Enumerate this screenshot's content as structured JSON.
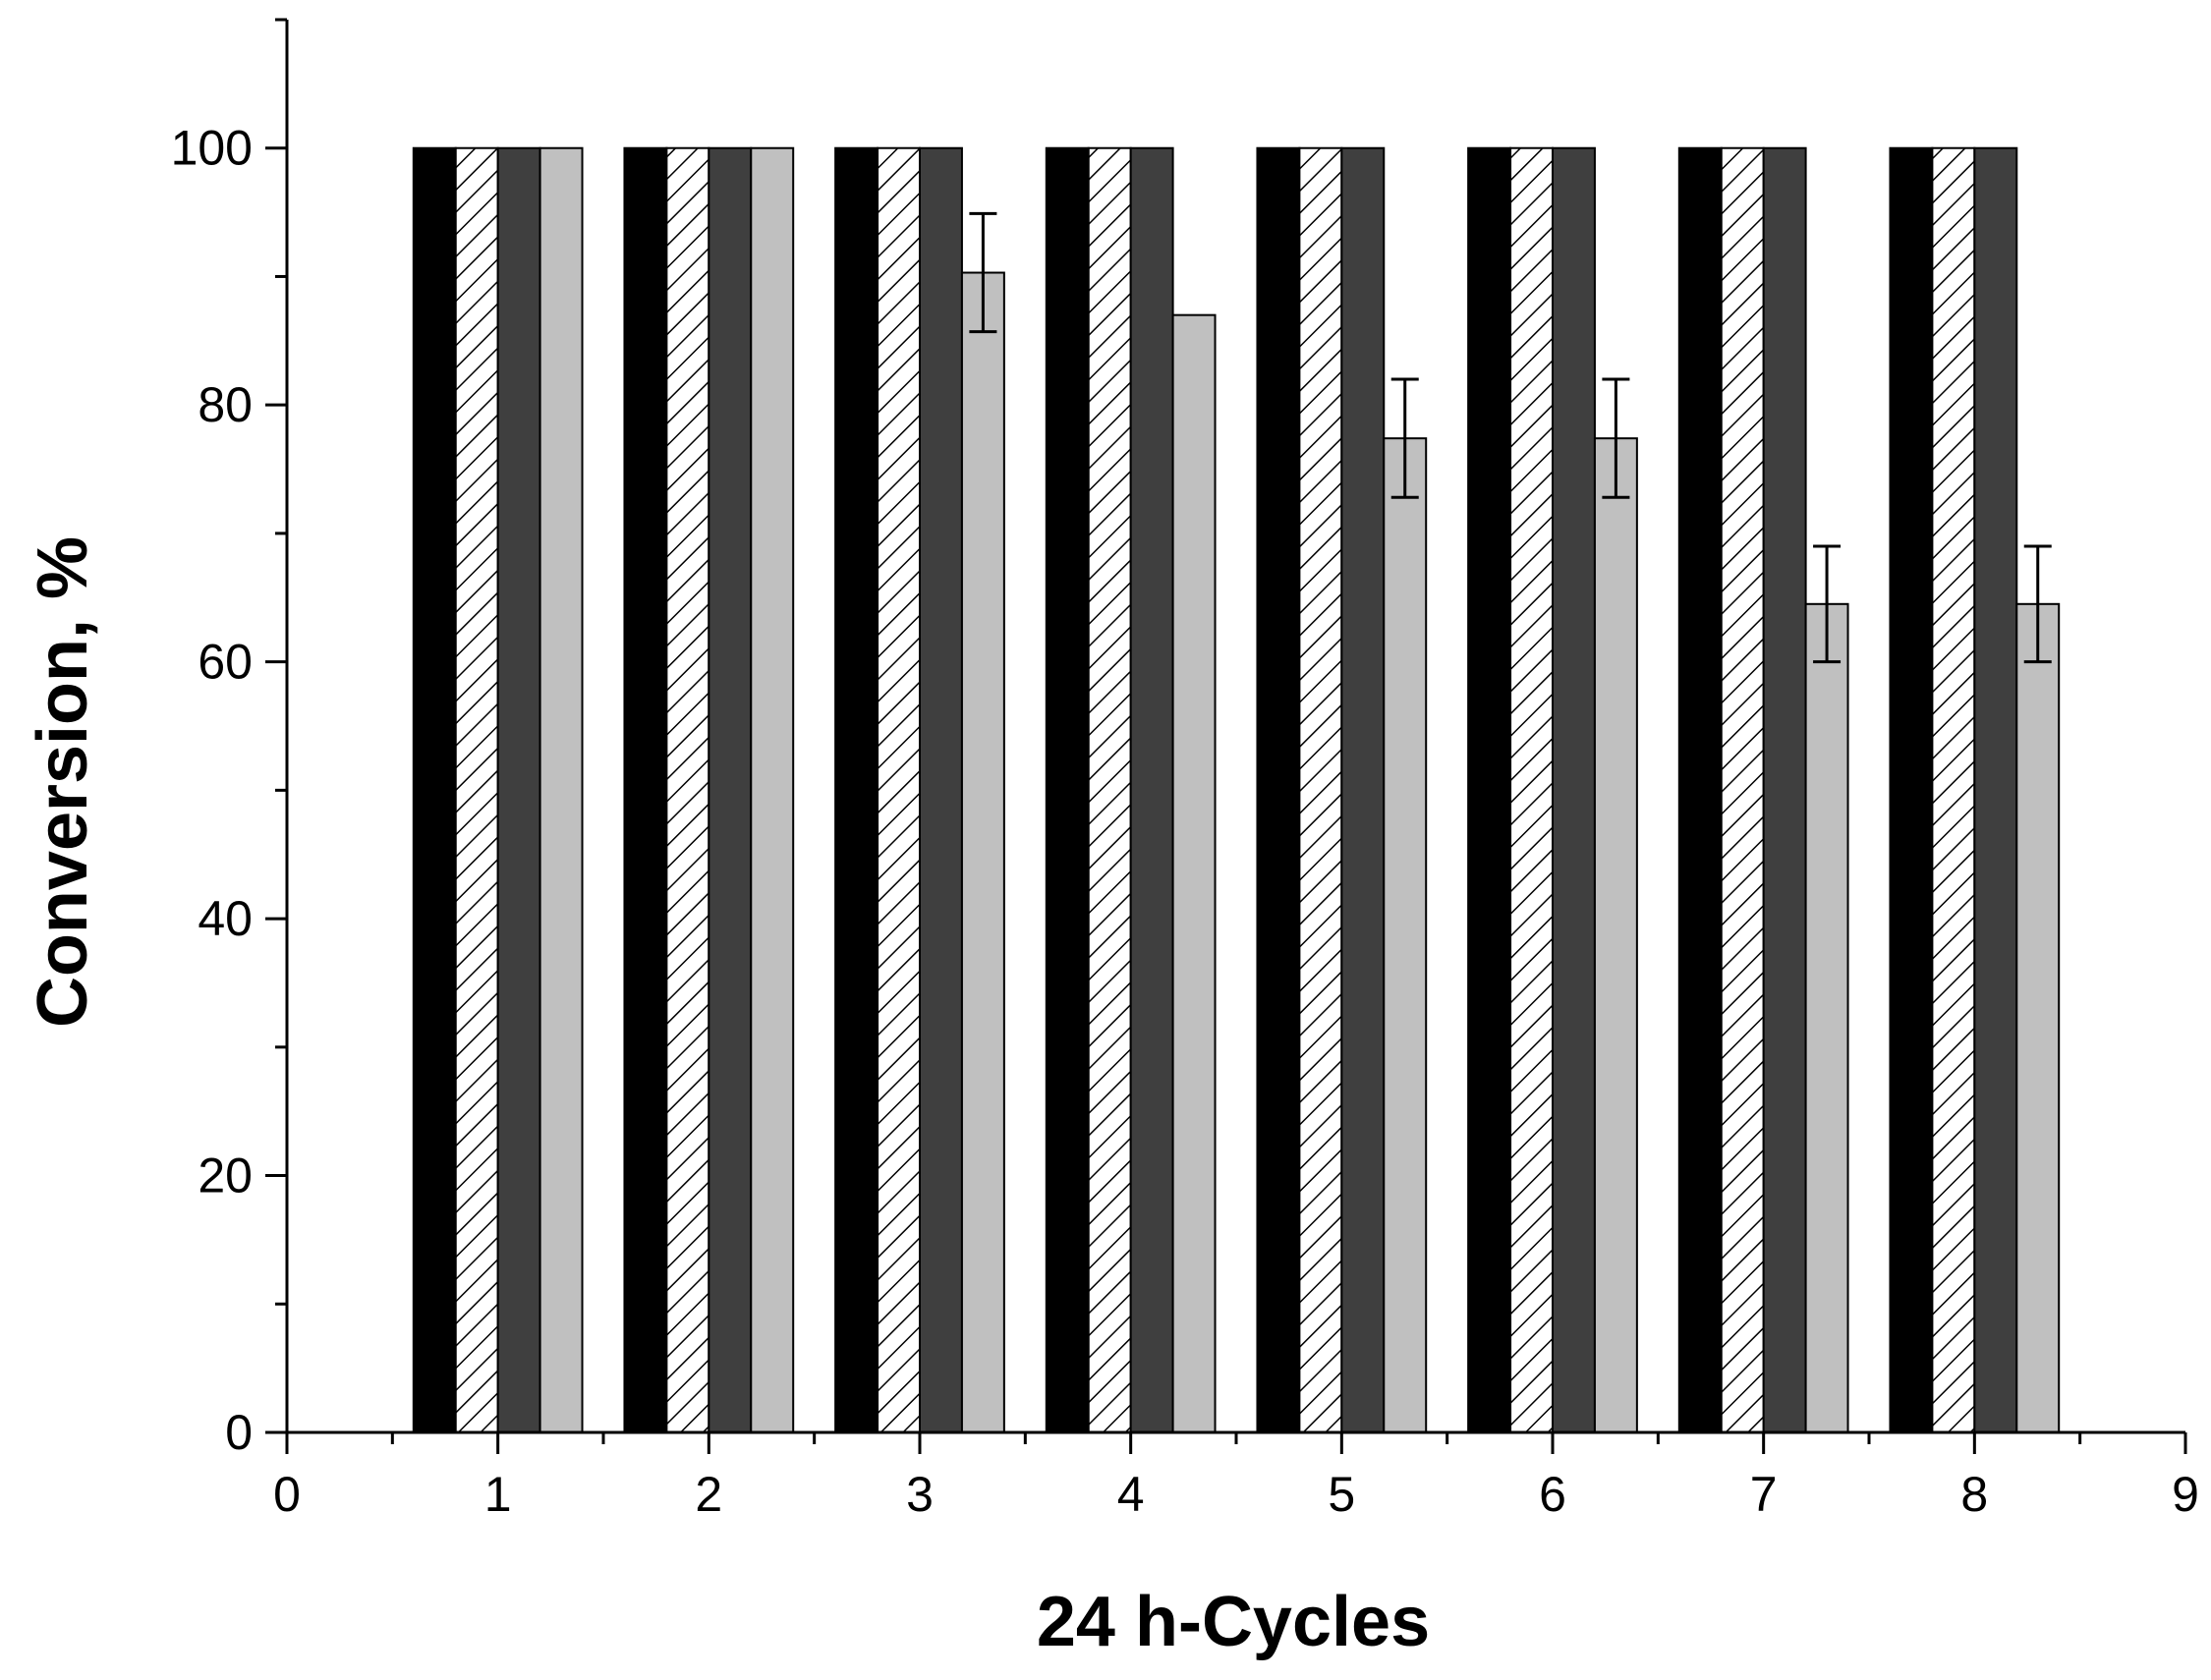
{
  "chart_data": {
    "type": "bar",
    "xlabel": "24 h-Cycles",
    "ylabel": "Conversion, %",
    "xlim": [
      0,
      9
    ],
    "ylim": [
      0,
      110
    ],
    "xticks": [
      "0",
      "1",
      "2",
      "3",
      "4",
      "5",
      "6",
      "7",
      "8",
      "9"
    ],
    "yticks": [
      "0",
      "20",
      "40",
      "60",
      "80",
      "100"
    ],
    "categories": [
      1,
      2,
      3,
      4,
      5,
      6,
      7,
      8
    ],
    "grid": false,
    "legend": "none",
    "series": [
      {
        "fill": "solid",
        "color": "#000000",
        "values": [
          100,
          100,
          100,
          100,
          100,
          100,
          100,
          100
        ]
      },
      {
        "fill": "hatched",
        "color": "#ffffff",
        "values": [
          100,
          100,
          100,
          100,
          100,
          100,
          100,
          100
        ]
      },
      {
        "fill": "solid",
        "color": "#3f3f3f",
        "values": [
          100,
          100,
          100,
          100,
          100,
          100,
          100,
          100
        ]
      },
      {
        "fill": "solid",
        "color": "#c0c0c0",
        "values": [
          100,
          100,
          90.3,
          87,
          77.4,
          77.4,
          64.5,
          64.5
        ],
        "errors": [
          null,
          null,
          4.6,
          null,
          4.6,
          4.6,
          4.5,
          4.5
        ]
      }
    ]
  }
}
